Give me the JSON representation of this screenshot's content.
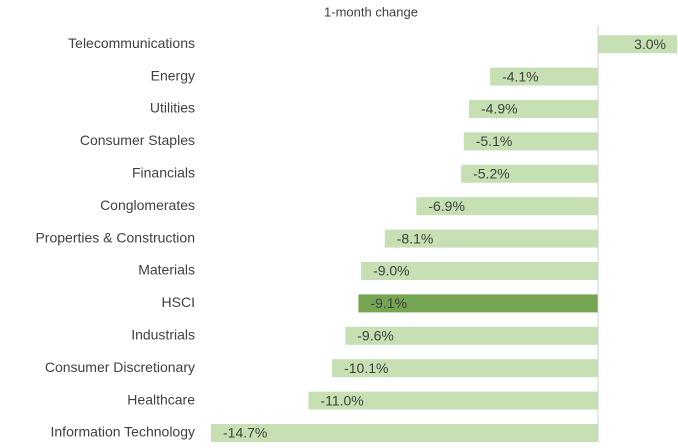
{
  "chart_data": {
    "type": "barh",
    "title": "1-month change",
    "categories": [
      "Telecommunications",
      "Energy",
      "Utilities",
      "Consumer Staples",
      "Financials",
      "Conglomerates",
      "Properties & Construction",
      "Materials",
      "HSCI",
      "Industrials",
      "Consumer Discretionary",
      "Healthcare",
      "Information Technology"
    ],
    "values": [
      3.0,
      -4.1,
      -4.9,
      -5.1,
      -5.2,
      -6.9,
      -8.1,
      -9.0,
      -9.1,
      -9.6,
      -10.1,
      -11.0,
      -14.7
    ],
    "value_labels": [
      "3.0%",
      "-4.1%",
      "-4.9%",
      "-5.1%",
      "-5.2%",
      "-6.9%",
      "-8.1%",
      "-9.0%",
      "-9.1%",
      "-9.6%",
      "-10.1%",
      "-11.0%",
      "-14.7%"
    ],
    "colors": [
      "#c6e0b4",
      "#c6e0b4",
      "#c6e0b4",
      "#c6e0b4",
      "#c6e0b4",
      "#c6e0b4",
      "#c6e0b4",
      "#c6e0b4",
      "#76a552",
      "#c6e0b4",
      "#c6e0b4",
      "#c6e0b4",
      "#c6e0b4"
    ]
  }
}
